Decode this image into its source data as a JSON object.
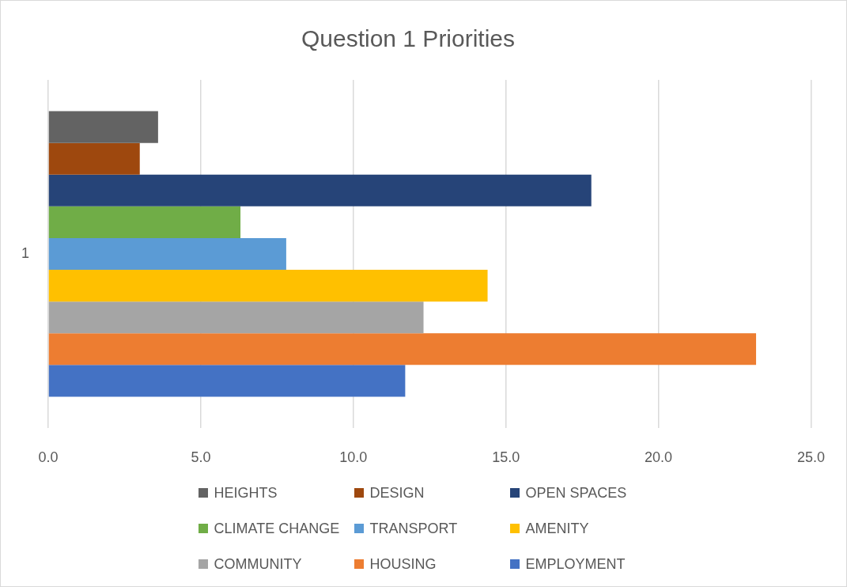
{
  "chart_data": {
    "type": "bar",
    "title": "Question 1 Priorities",
    "orientation": "horizontal",
    "categories": [
      "1"
    ],
    "series": [
      {
        "name": "HEIGHTS",
        "color": "#636363",
        "values": [
          3.6
        ]
      },
      {
        "name": "DESIGN",
        "color": "#9e480e",
        "values": [
          3.0
        ]
      },
      {
        "name": "OPEN SPACES",
        "color": "#264478",
        "values": [
          17.8
        ]
      },
      {
        "name": "CLIMATE CHANGE",
        "color": "#70ad47",
        "values": [
          6.3
        ]
      },
      {
        "name": "TRANSPORT",
        "color": "#5b9bd5",
        "values": [
          7.8
        ]
      },
      {
        "name": "AMENITY",
        "color": "#ffc000",
        "values": [
          14.4
        ]
      },
      {
        "name": "COMMUNITY",
        "color": "#a5a5a5",
        "values": [
          12.3
        ]
      },
      {
        "name": "HOUSING",
        "color": "#ed7d31",
        "values": [
          23.2
        ]
      },
      {
        "name": "EMPLOYMENT",
        "color": "#4472c4",
        "values": [
          11.7
        ]
      }
    ],
    "xlim": [
      0,
      25
    ],
    "xticks": [
      {
        "value": 0,
        "label": "0.0"
      },
      {
        "value": 5,
        "label": "5.0"
      },
      {
        "value": 10,
        "label": "10.0"
      },
      {
        "value": 15,
        "label": "15.0"
      },
      {
        "value": 20,
        "label": "20.0"
      },
      {
        "value": 25,
        "label": "25.0"
      }
    ],
    "grid": "x",
    "legend": "bottom"
  }
}
